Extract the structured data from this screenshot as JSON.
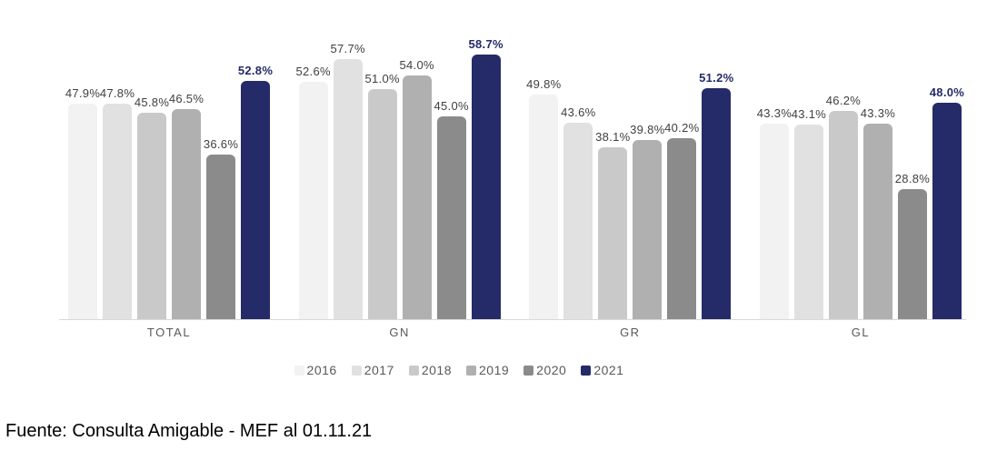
{
  "chart_data": {
    "type": "bar",
    "categories": [
      "TOTAL",
      "GN",
      "GR",
      "GL"
    ],
    "series": [
      {
        "name": "2016",
        "color": "#f2f2f2",
        "values": [
          47.9,
          52.6,
          49.8,
          43.3
        ],
        "emphasis": false
      },
      {
        "name": "2017",
        "color": "#e1e1e1",
        "values": [
          47.8,
          57.7,
          43.6,
          43.1
        ],
        "emphasis": false
      },
      {
        "name": "2018",
        "color": "#c9c9c9",
        "values": [
          45.8,
          51.0,
          38.1,
          46.2
        ],
        "emphasis": false
      },
      {
        "name": "2019",
        "color": "#b0b0b0",
        "values": [
          46.5,
          54.0,
          39.8,
          43.3
        ],
        "emphasis": false
      },
      {
        "name": "2020",
        "color": "#8b8b8b",
        "values": [
          36.6,
          45.0,
          40.2,
          28.8
        ],
        "emphasis": false
      },
      {
        "name": "2021",
        "color": "#252a68",
        "values": [
          52.8,
          58.7,
          51.2,
          48.0
        ],
        "emphasis": true
      }
    ],
    "value_suffix": "%",
    "value_decimals": 1,
    "ylim": [
      0,
      59.3
    ],
    "grid": false,
    "y_axis_visible": false,
    "legend_position": "bottom",
    "data_labels": "above-bars"
  },
  "colors": {
    "accent_2021": "#252a68",
    "axis_line": "#d9d9d9",
    "value_label": "#404040",
    "category_label": "#595959",
    "legend_label": "#595959"
  },
  "footer": {
    "source": "Fuente: Consulta Amigable - MEF al 01.11.21"
  }
}
